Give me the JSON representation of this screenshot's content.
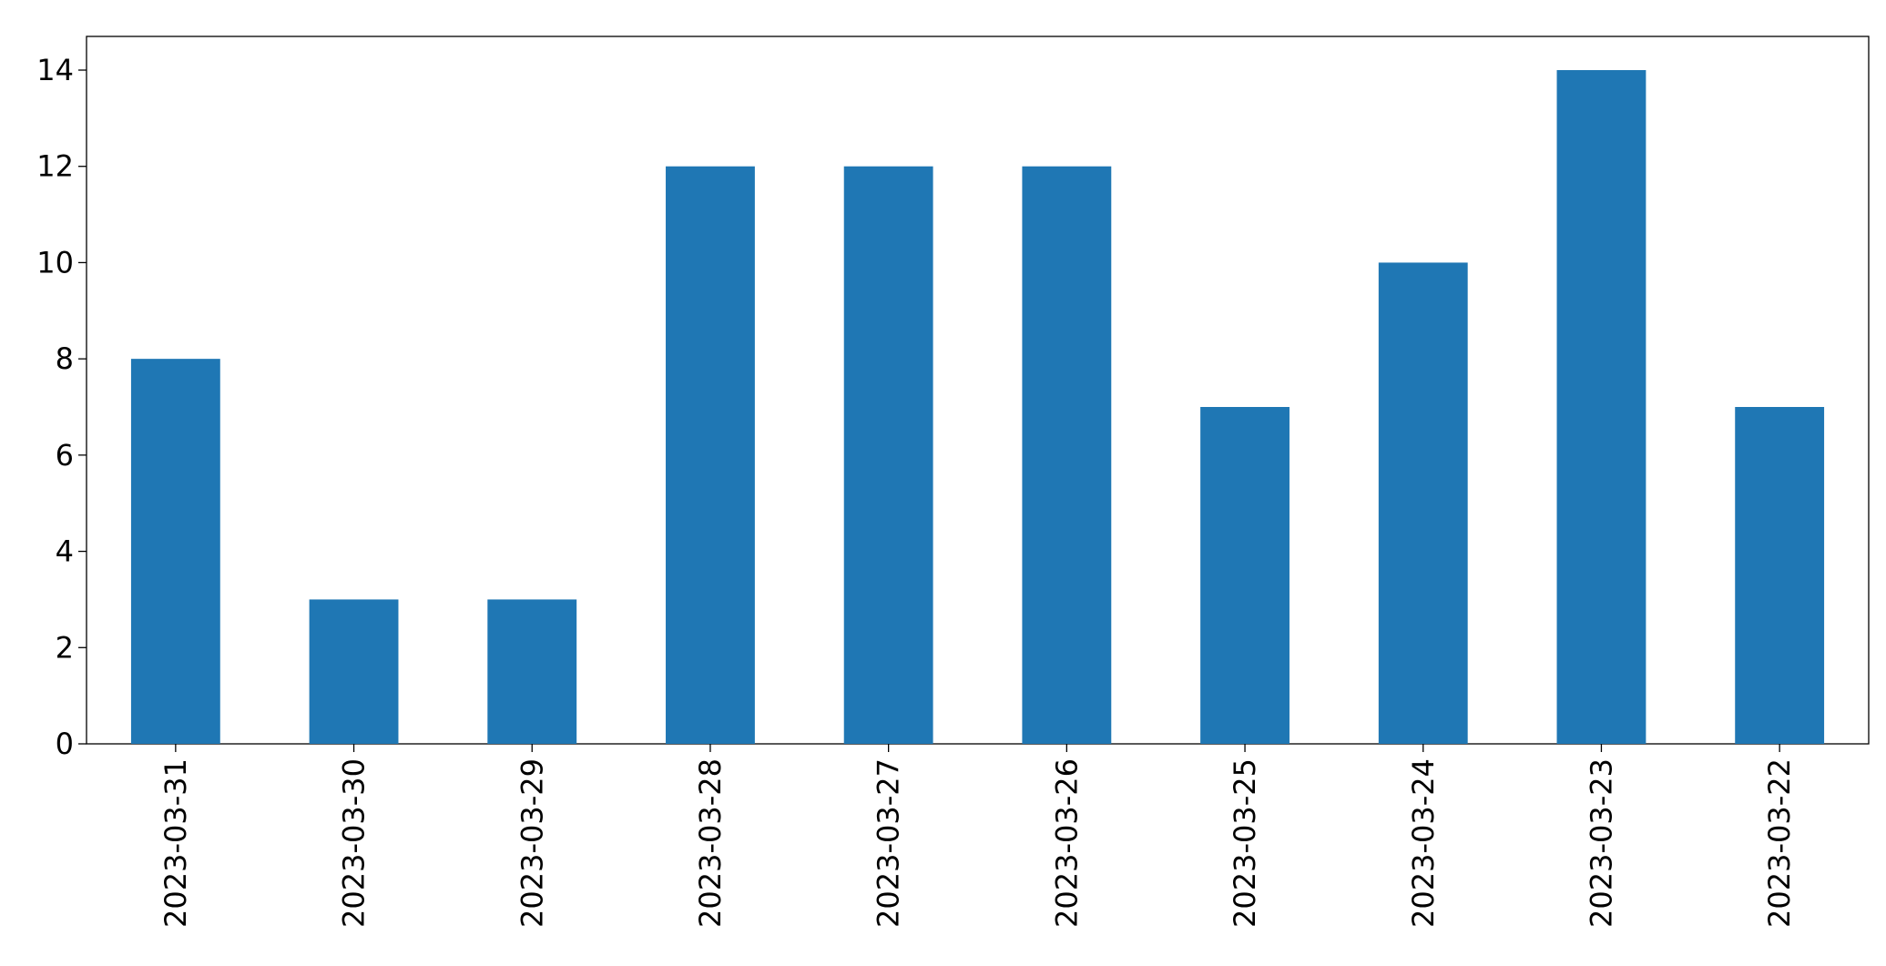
{
  "chart_data": {
    "type": "bar",
    "categories": [
      "2023-03-31",
      "2023-03-30",
      "2023-03-29",
      "2023-03-28",
      "2023-03-27",
      "2023-03-26",
      "2023-03-25",
      "2023-03-24",
      "2023-03-23",
      "2023-03-22"
    ],
    "values": [
      8,
      3,
      3,
      12,
      12,
      12,
      7,
      10,
      14,
      7
    ],
    "color": "#1f77b4",
    "ylim": [
      0,
      14.7
    ],
    "yticks": [
      0,
      2,
      4,
      6,
      8,
      10,
      12,
      14
    ],
    "grid": false
  }
}
